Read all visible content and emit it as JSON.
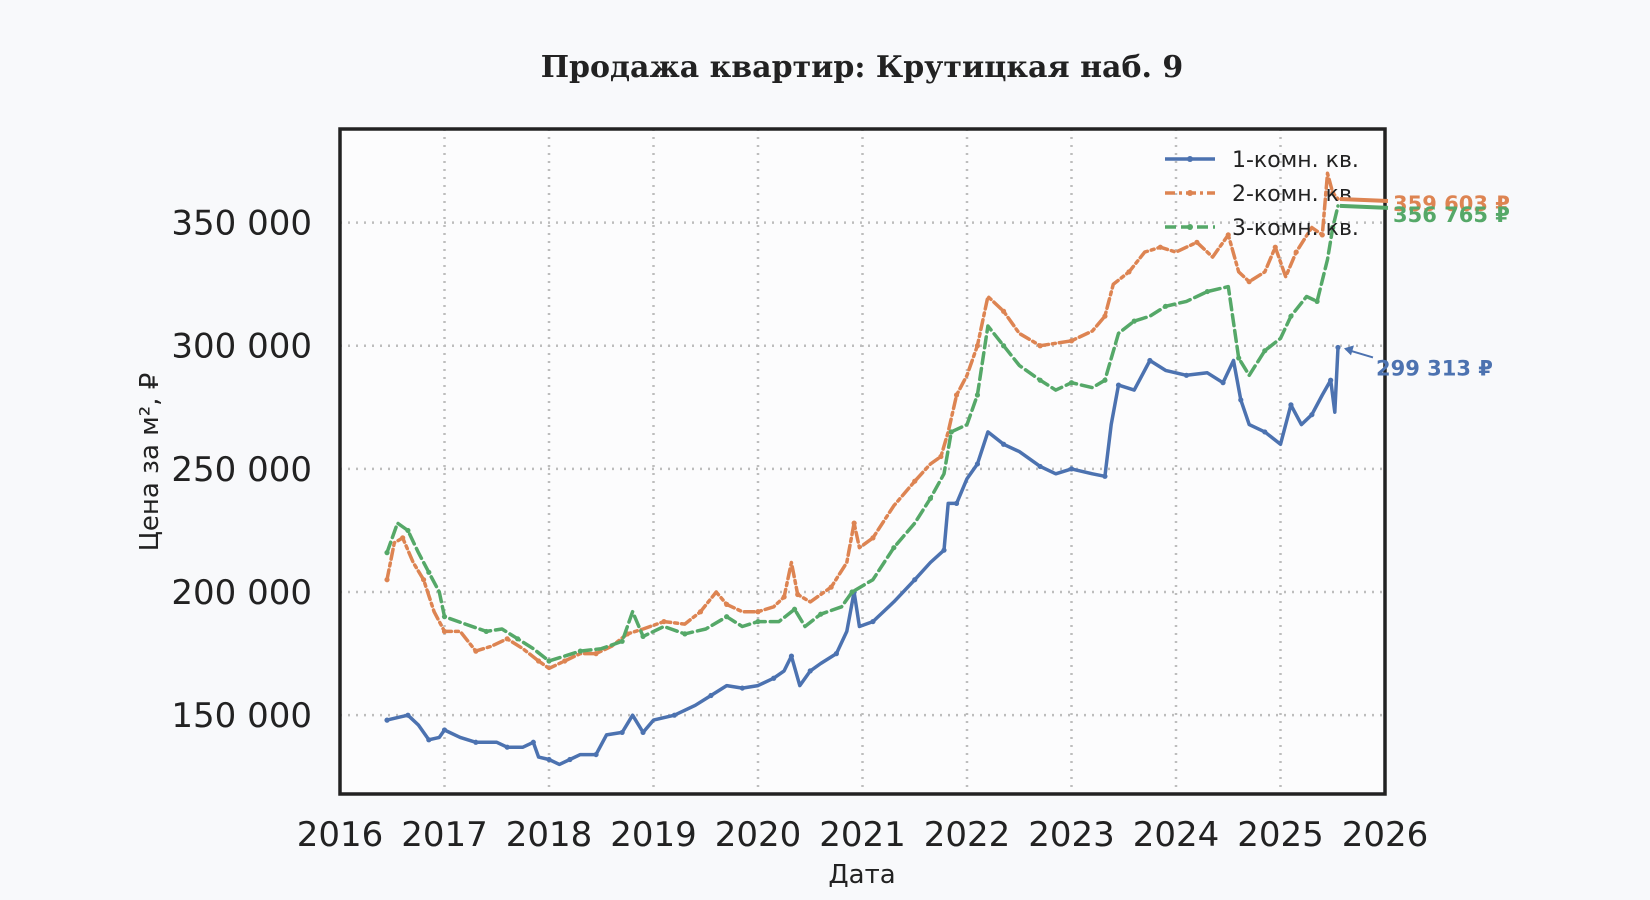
{
  "chart_data": {
    "type": "line",
    "title": "Продажа квартир: Крутицкая наб. 9",
    "xlabel": "Дата",
    "ylabel": "Цена за м², ₽",
    "xlim": [
      2016,
      2026
    ],
    "ylim": [
      118000,
      388000
    ],
    "x_ticks": [
      "2016",
      "2017",
      "2018",
      "2019",
      "2020",
      "2021",
      "2022",
      "2023",
      "2024",
      "2025",
      "2026"
    ],
    "y_ticks": [
      150000,
      200000,
      250000,
      300000,
      350000
    ],
    "y_tick_labels": [
      "150 000",
      "200 000",
      "250 000",
      "300 000",
      "350 000"
    ],
    "grid": true,
    "legend_position": "top-right",
    "series": [
      {
        "name": "1-комн. кв.",
        "color": "#4c72b0",
        "style": "solid",
        "end_label": "299 313 ₽",
        "end_value": 299313,
        "points": [
          [
            2016.45,
            148000
          ],
          [
            2016.55,
            149000
          ],
          [
            2016.65,
            150000
          ],
          [
            2016.75,
            146000
          ],
          [
            2016.85,
            140000
          ],
          [
            2016.95,
            141000
          ],
          [
            2017.0,
            144000
          ],
          [
            2017.15,
            141000
          ],
          [
            2017.3,
            139000
          ],
          [
            2017.5,
            139000
          ],
          [
            2017.6,
            137000
          ],
          [
            2017.75,
            137000
          ],
          [
            2017.85,
            139000
          ],
          [
            2017.9,
            133000
          ],
          [
            2018.0,
            132000
          ],
          [
            2018.1,
            130000
          ],
          [
            2018.2,
            132000
          ],
          [
            2018.3,
            134000
          ],
          [
            2018.45,
            134000
          ],
          [
            2018.55,
            142000
          ],
          [
            2018.7,
            143000
          ],
          [
            2018.8,
            150000
          ],
          [
            2018.9,
            143000
          ],
          [
            2019.0,
            148000
          ],
          [
            2019.2,
            150000
          ],
          [
            2019.4,
            154000
          ],
          [
            2019.55,
            158000
          ],
          [
            2019.7,
            162000
          ],
          [
            2019.85,
            161000
          ],
          [
            2020.0,
            162000
          ],
          [
            2020.15,
            165000
          ],
          [
            2020.25,
            168000
          ],
          [
            2020.32,
            174000
          ],
          [
            2020.4,
            162000
          ],
          [
            2020.5,
            168000
          ],
          [
            2020.6,
            171000
          ],
          [
            2020.75,
            175000
          ],
          [
            2020.85,
            184000
          ],
          [
            2020.92,
            200000
          ],
          [
            2020.97,
            186000
          ],
          [
            2021.1,
            188000
          ],
          [
            2021.3,
            196000
          ],
          [
            2021.5,
            205000
          ],
          [
            2021.65,
            212000
          ],
          [
            2021.78,
            217000
          ],
          [
            2021.82,
            236000
          ],
          [
            2021.9,
            236000
          ],
          [
            2022.0,
            246000
          ],
          [
            2022.1,
            252000
          ],
          [
            2022.2,
            265000
          ],
          [
            2022.35,
            260000
          ],
          [
            2022.5,
            257000
          ],
          [
            2022.7,
            251000
          ],
          [
            2022.85,
            248000
          ],
          [
            2023.0,
            250000
          ],
          [
            2023.2,
            248000
          ],
          [
            2023.32,
            247000
          ],
          [
            2023.38,
            268000
          ],
          [
            2023.45,
            284000
          ],
          [
            2023.6,
            282000
          ],
          [
            2023.75,
            294000
          ],
          [
            2023.9,
            290000
          ],
          [
            2024.1,
            288000
          ],
          [
            2024.3,
            289000
          ],
          [
            2024.45,
            285000
          ],
          [
            2024.55,
            294000
          ],
          [
            2024.62,
            278000
          ],
          [
            2024.7,
            268000
          ],
          [
            2024.85,
            265000
          ],
          [
            2025.0,
            260000
          ],
          [
            2025.1,
            276000
          ],
          [
            2025.2,
            268000
          ],
          [
            2025.3,
            272000
          ],
          [
            2025.4,
            280000
          ],
          [
            2025.48,
            286000
          ],
          [
            2025.52,
            273000
          ],
          [
            2025.55,
            299313
          ]
        ]
      },
      {
        "name": "2-комн. кв.",
        "color": "#dd8452",
        "style": "dashdot",
        "end_label": "359 603 ₽",
        "end_value": 359603,
        "points": [
          [
            2016.45,
            205000
          ],
          [
            2016.52,
            220000
          ],
          [
            2016.6,
            222000
          ],
          [
            2016.7,
            212000
          ],
          [
            2016.8,
            205000
          ],
          [
            2016.9,
            192000
          ],
          [
            2017.0,
            184000
          ],
          [
            2017.15,
            184000
          ],
          [
            2017.3,
            176000
          ],
          [
            2017.45,
            178000
          ],
          [
            2017.6,
            181000
          ],
          [
            2017.75,
            177000
          ],
          [
            2017.9,
            172000
          ],
          [
            2018.0,
            169000
          ],
          [
            2018.15,
            172000
          ],
          [
            2018.3,
            175000
          ],
          [
            2018.45,
            175000
          ],
          [
            2018.6,
            178000
          ],
          [
            2018.75,
            183000
          ],
          [
            2018.9,
            185000
          ],
          [
            2019.1,
            188000
          ],
          [
            2019.3,
            187000
          ],
          [
            2019.45,
            192000
          ],
          [
            2019.6,
            200000
          ],
          [
            2019.7,
            195000
          ],
          [
            2019.85,
            192000
          ],
          [
            2020.0,
            192000
          ],
          [
            2020.15,
            194000
          ],
          [
            2020.25,
            198000
          ],
          [
            2020.32,
            212000
          ],
          [
            2020.38,
            199000
          ],
          [
            2020.5,
            196000
          ],
          [
            2020.7,
            202000
          ],
          [
            2020.85,
            212000
          ],
          [
            2020.92,
            228000
          ],
          [
            2020.97,
            218000
          ],
          [
            2021.1,
            222000
          ],
          [
            2021.3,
            235000
          ],
          [
            2021.5,
            245000
          ],
          [
            2021.65,
            252000
          ],
          [
            2021.75,
            255000
          ],
          [
            2021.82,
            265000
          ],
          [
            2021.9,
            280000
          ],
          [
            2022.0,
            288000
          ],
          [
            2022.1,
            300000
          ],
          [
            2022.2,
            320000
          ],
          [
            2022.35,
            314000
          ],
          [
            2022.5,
            305000
          ],
          [
            2022.7,
            300000
          ],
          [
            2022.85,
            301000
          ],
          [
            2023.0,
            302000
          ],
          [
            2023.2,
            306000
          ],
          [
            2023.32,
            312000
          ],
          [
            2023.4,
            325000
          ],
          [
            2023.55,
            330000
          ],
          [
            2023.7,
            338000
          ],
          [
            2023.85,
            340000
          ],
          [
            2024.0,
            338000
          ],
          [
            2024.2,
            342000
          ],
          [
            2024.35,
            336000
          ],
          [
            2024.5,
            345000
          ],
          [
            2024.6,
            330000
          ],
          [
            2024.7,
            326000
          ],
          [
            2024.85,
            330000
          ],
          [
            2024.95,
            340000
          ],
          [
            2025.05,
            328000
          ],
          [
            2025.15,
            338000
          ],
          [
            2025.3,
            348000
          ],
          [
            2025.4,
            345000
          ],
          [
            2025.45,
            370000
          ],
          [
            2025.5,
            362000
          ],
          [
            2025.55,
            359603
          ]
        ]
      },
      {
        "name": "3-комн. кв.",
        "color": "#55a868",
        "style": "dashed",
        "end_label": "356 765 ₽",
        "end_value": 356765,
        "points": [
          [
            2016.45,
            216000
          ],
          [
            2016.55,
            228000
          ],
          [
            2016.65,
            225000
          ],
          [
            2016.75,
            216000
          ],
          [
            2016.85,
            208000
          ],
          [
            2016.95,
            200000
          ],
          [
            2017.0,
            190000
          ],
          [
            2017.2,
            187000
          ],
          [
            2017.4,
            184000
          ],
          [
            2017.55,
            185000
          ],
          [
            2017.7,
            181000
          ],
          [
            2017.85,
            177000
          ],
          [
            2018.0,
            172000
          ],
          [
            2018.15,
            174000
          ],
          [
            2018.3,
            176000
          ],
          [
            2018.5,
            177000
          ],
          [
            2018.7,
            180000
          ],
          [
            2018.8,
            192000
          ],
          [
            2018.9,
            182000
          ],
          [
            2019.1,
            186000
          ],
          [
            2019.3,
            183000
          ],
          [
            2019.5,
            185000
          ],
          [
            2019.7,
            190000
          ],
          [
            2019.85,
            186000
          ],
          [
            2020.0,
            188000
          ],
          [
            2020.2,
            188000
          ],
          [
            2020.35,
            193000
          ],
          [
            2020.45,
            186000
          ],
          [
            2020.6,
            191000
          ],
          [
            2020.8,
            194000
          ],
          [
            2020.9,
            200000
          ],
          [
            2021.1,
            205000
          ],
          [
            2021.3,
            218000
          ],
          [
            2021.5,
            228000
          ],
          [
            2021.65,
            238000
          ],
          [
            2021.78,
            248000
          ],
          [
            2021.85,
            265000
          ],
          [
            2022.0,
            268000
          ],
          [
            2022.1,
            280000
          ],
          [
            2022.2,
            308000
          ],
          [
            2022.35,
            300000
          ],
          [
            2022.5,
            292000
          ],
          [
            2022.7,
            286000
          ],
          [
            2022.85,
            282000
          ],
          [
            2023.0,
            285000
          ],
          [
            2023.2,
            283000
          ],
          [
            2023.32,
            286000
          ],
          [
            2023.45,
            305000
          ],
          [
            2023.6,
            310000
          ],
          [
            2023.75,
            312000
          ],
          [
            2023.9,
            316000
          ],
          [
            2024.1,
            318000
          ],
          [
            2024.3,
            322000
          ],
          [
            2024.5,
            324000
          ],
          [
            2024.6,
            295000
          ],
          [
            2024.7,
            288000
          ],
          [
            2024.85,
            298000
          ],
          [
            2025.0,
            303000
          ],
          [
            2025.1,
            312000
          ],
          [
            2025.25,
            320000
          ],
          [
            2025.35,
            318000
          ],
          [
            2025.45,
            335000
          ],
          [
            2025.5,
            348000
          ],
          [
            2025.55,
            356765
          ]
        ]
      }
    ]
  }
}
